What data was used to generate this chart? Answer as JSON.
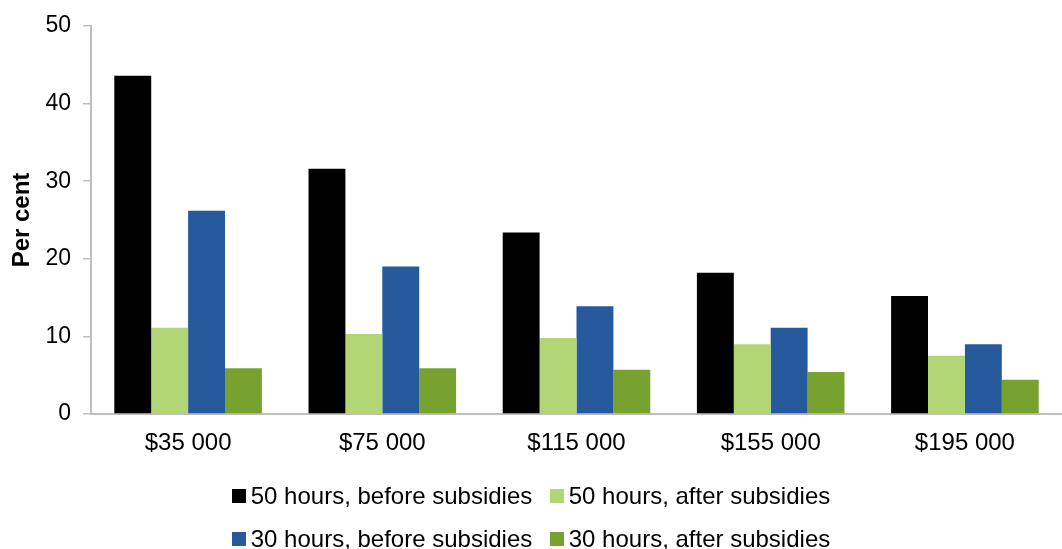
{
  "chart_data": {
    "type": "bar",
    "ylabel": "Per cent",
    "categories": [
      "$35 000",
      "$75 000",
      "$115 000",
      "$155 000",
      "$195 000"
    ],
    "series": [
      {
        "name": "50 hours, before subsidies",
        "color": "#000000",
        "values": [
          43.6,
          31.6,
          23.4,
          18.2,
          15.2
        ]
      },
      {
        "name": "50 hours, after subsidies",
        "color": "#b2d675",
        "values": [
          11.1,
          10.3,
          9.8,
          9.0,
          7.5
        ]
      },
      {
        "name": "30 hours, before subsidies",
        "color": "#265a9c",
        "values": [
          26.2,
          19.0,
          13.9,
          11.1,
          9.0
        ]
      },
      {
        "name": "30 hours, after subsidies",
        "color": "#78a22f",
        "values": [
          5.9,
          5.9,
          5.7,
          5.4,
          4.4
        ]
      }
    ],
    "ylim": [
      0,
      50
    ],
    "yticks": [
      0,
      10,
      20,
      30,
      40,
      50
    ],
    "legend": "bottom"
  }
}
